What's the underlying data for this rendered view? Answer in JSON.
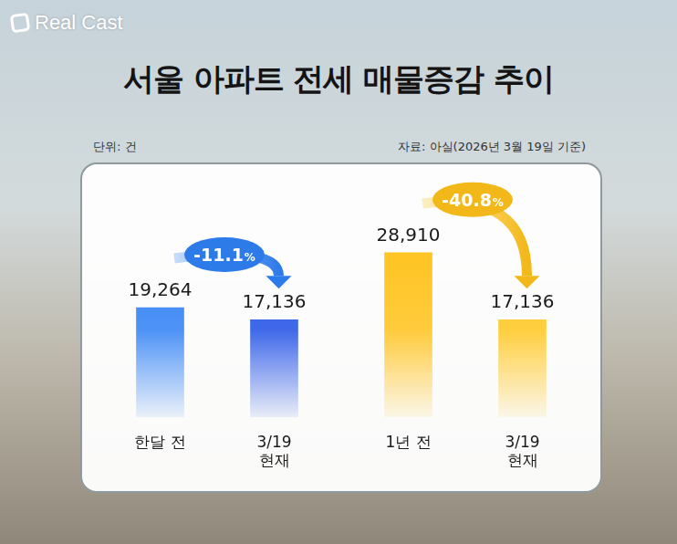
{
  "header": {
    "brand": "Real Cast",
    "title": "서울 아파트 전세 매물증감 추이",
    "unit": "단위: 건",
    "source": "자료: 아실(2026년 3월 19일 기준)"
  },
  "chart_data": [
    {
      "type": "bar",
      "categories": [
        "한달 전",
        "3/19 현재"
      ],
      "values": [
        19264,
        17136
      ],
      "value_labels": [
        "19,264",
        "17,136"
      ],
      "colors": [
        "#2f80f5",
        "#1f4fe6"
      ],
      "annotation": "-11.1%",
      "ylim": [
        0,
        34000
      ],
      "grid": false,
      "data_labels": true,
      "tick_labels": "x"
    },
    {
      "type": "bar",
      "categories": [
        "1년 전",
        "3/19 현재"
      ],
      "values": [
        28910,
        17136
      ],
      "value_labels": [
        "28,910",
        "17,136"
      ],
      "colors": [
        "#ffc21a",
        "#ffc61e"
      ],
      "annotation": "-40.8%",
      "ylim": [
        0,
        34000
      ],
      "grid": false,
      "data_labels": true,
      "tick_labels": "x"
    }
  ]
}
